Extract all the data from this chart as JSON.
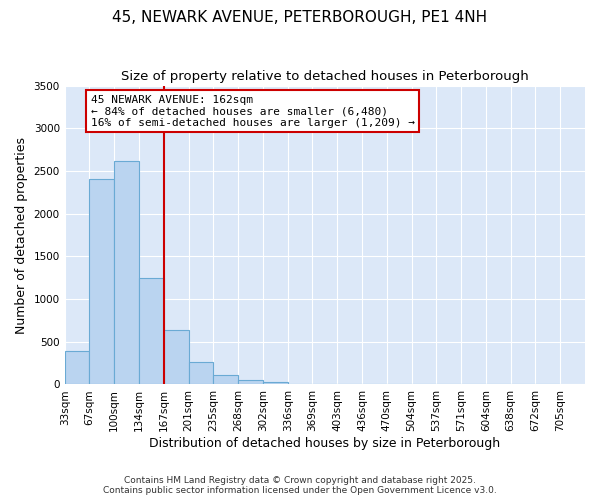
{
  "title": "45, NEWARK AVENUE, PETERBOROUGH, PE1 4NH",
  "subtitle": "Size of property relative to detached houses in Peterborough",
  "xlabel": "Distribution of detached houses by size in Peterborough",
  "ylabel": "Number of detached properties",
  "bin_labels": [
    "33sqm",
    "67sqm",
    "100sqm",
    "134sqm",
    "167sqm",
    "201sqm",
    "235sqm",
    "268sqm",
    "302sqm",
    "336sqm",
    "369sqm",
    "403sqm",
    "436sqm",
    "470sqm",
    "504sqm",
    "537sqm",
    "571sqm",
    "604sqm",
    "638sqm",
    "672sqm",
    "705sqm"
  ],
  "bar_values": [
    390,
    2400,
    2620,
    1250,
    640,
    260,
    105,
    50,
    30,
    0,
    0,
    0,
    0,
    0,
    0,
    0,
    0,
    0,
    0,
    0
  ],
  "bar_color": "#bad4f0",
  "bar_edge_color": "#6aaad4",
  "background_color": "#dce8f8",
  "vline_color": "#cc0000",
  "vline_bin_index": 4,
  "ylim": [
    0,
    3500
  ],
  "yticks": [
    0,
    500,
    1000,
    1500,
    2000,
    2500,
    3000,
    3500
  ],
  "annotation_title": "45 NEWARK AVENUE: 162sqm",
  "annotation_line1": "← 84% of detached houses are smaller (6,480)",
  "annotation_line2": "16% of semi-detached houses are larger (1,209) →",
  "footer1": "Contains HM Land Registry data © Crown copyright and database right 2025.",
  "footer2": "Contains public sector information licensed under the Open Government Licence v3.0.",
  "title_fontsize": 11,
  "subtitle_fontsize": 9.5,
  "axis_label_fontsize": 9,
  "tick_fontsize": 7.5,
  "annotation_fontsize": 8,
  "footer_fontsize": 6.5
}
